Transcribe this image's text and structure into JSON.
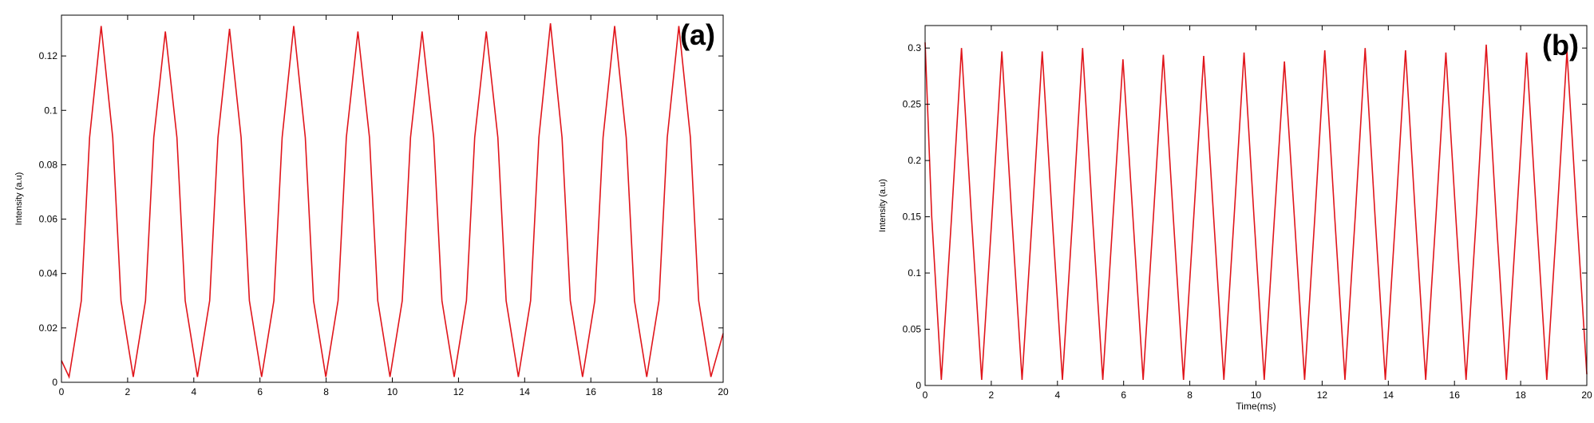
{
  "chart_data": [
    {
      "type": "line",
      "annotation": "(a)",
      "ylabel": "Intensity (a.u)",
      "color": "#e0151b",
      "xlim": [
        0,
        20
      ],
      "xticks": [
        0,
        2,
        4,
        6,
        8,
        10,
        12,
        14,
        16,
        18,
        20
      ],
      "ylim": [
        0,
        0.135
      ],
      "yticks": [
        0,
        0.02,
        0.04,
        0.06,
        0.08,
        0.1,
        0.12
      ],
      "x": [
        0,
        0.23,
        0.6,
        0.85,
        1.2,
        1.55,
        1.8,
        2.17,
        2.54,
        2.79,
        3.14,
        3.49,
        3.74,
        4.11,
        4.48,
        4.73,
        5.08,
        5.43,
        5.68,
        6.05,
        6.42,
        6.67,
        7.02,
        7.37,
        7.62,
        7.99,
        8.36,
        8.61,
        8.96,
        9.31,
        9.56,
        9.93,
        10.3,
        10.55,
        10.9,
        11.25,
        11.5,
        11.87,
        12.24,
        12.49,
        12.84,
        13.19,
        13.44,
        13.81,
        14.18,
        14.43,
        14.78,
        15.13,
        15.38,
        15.75,
        16.12,
        16.37,
        16.72,
        17.07,
        17.32,
        17.69,
        18.06,
        18.31,
        18.66,
        19.01,
        19.26,
        19.63,
        20
      ],
      "values": [
        0.008,
        0.002,
        0.03,
        0.09,
        0.131,
        0.09,
        0.03,
        0.002,
        0.03,
        0.09,
        0.129,
        0.09,
        0.03,
        0.002,
        0.03,
        0.09,
        0.13,
        0.09,
        0.03,
        0.002,
        0.03,
        0.09,
        0.131,
        0.09,
        0.03,
        0.002,
        0.03,
        0.09,
        0.129,
        0.09,
        0.03,
        0.002,
        0.03,
        0.09,
        0.129,
        0.09,
        0.03,
        0.002,
        0.03,
        0.09,
        0.129,
        0.09,
        0.03,
        0.002,
        0.03,
        0.09,
        0.132,
        0.09,
        0.03,
        0.002,
        0.03,
        0.09,
        0.131,
        0.09,
        0.03,
        0.002,
        0.03,
        0.09,
        0.131,
        0.09,
        0.03,
        0.002,
        0.018
      ]
    },
    {
      "type": "line",
      "annotation": "(b)",
      "ylabel": "Intensity (a.u)",
      "xlabel": "Time(ms)",
      "color": "#e0151b",
      "xlim": [
        0,
        20
      ],
      "xticks": [
        0,
        2,
        4,
        6,
        8,
        10,
        12,
        14,
        16,
        18,
        20
      ],
      "ylim": [
        0,
        0.32
      ],
      "yticks": [
        0,
        0.05,
        0.1,
        0.15,
        0.2,
        0.25,
        0.3
      ],
      "x": [
        0,
        0.2,
        0.49,
        0.8,
        1.1,
        1.4,
        1.71,
        2.02,
        2.32,
        2.62,
        2.93,
        3.24,
        3.54,
        3.84,
        4.15,
        4.46,
        4.76,
        5.06,
        5.37,
        5.68,
        5.98,
        6.28,
        6.59,
        6.9,
        7.2,
        7.5,
        7.81,
        8.12,
        8.42,
        8.72,
        9.03,
        9.34,
        9.64,
        9.94,
        10.25,
        10.56,
        10.86,
        11.16,
        11.47,
        11.78,
        12.08,
        12.38,
        12.69,
        13,
        13.3,
        13.6,
        13.91,
        14.22,
        14.52,
        14.82,
        15.13,
        15.44,
        15.74,
        16.04,
        16.35,
        16.66,
        16.96,
        17.26,
        17.57,
        17.88,
        18.18,
        18.48,
        18.79,
        19.1,
        19.4,
        19.7,
        20
      ],
      "values": [
        0.305,
        0.15,
        0.005,
        0.15,
        0.3,
        0.15,
        0.005,
        0.15,
        0.297,
        0.15,
        0.005,
        0.15,
        0.297,
        0.15,
        0.005,
        0.15,
        0.3,
        0.15,
        0.005,
        0.15,
        0.29,
        0.15,
        0.005,
        0.15,
        0.294,
        0.15,
        0.005,
        0.15,
        0.293,
        0.15,
        0.005,
        0.15,
        0.296,
        0.15,
        0.005,
        0.15,
        0.288,
        0.15,
        0.005,
        0.15,
        0.298,
        0.15,
        0.005,
        0.15,
        0.3,
        0.15,
        0.005,
        0.15,
        0.298,
        0.15,
        0.005,
        0.15,
        0.296,
        0.15,
        0.005,
        0.15,
        0.303,
        0.15,
        0.005,
        0.15,
        0.296,
        0.15,
        0.005,
        0.15,
        0.297,
        0.15,
        0.01
      ]
    }
  ]
}
